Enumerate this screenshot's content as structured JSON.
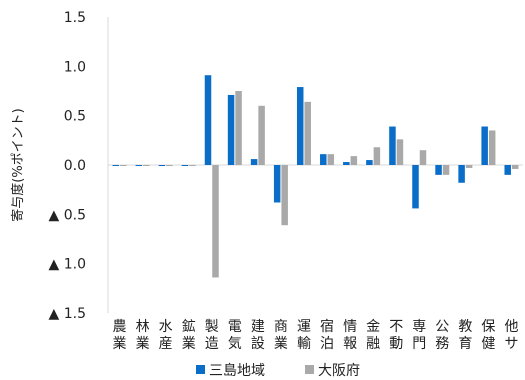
{
  "chart_data": {
    "type": "bar",
    "ylabel": "寄与度(%ポイント)",
    "yticks": [
      "1.5",
      "1.0",
      "0.5",
      "0.0",
      "▲ 0.5",
      "▲ 1.0",
      "▲ 1.5"
    ],
    "ylim": [
      -1.5,
      1.5
    ],
    "categories": [
      [
        "農",
        "業"
      ],
      [
        "林",
        "業"
      ],
      [
        "水",
        "産"
      ],
      [
        "鉱",
        "業"
      ],
      [
        "製",
        "造"
      ],
      [
        "電",
        "気"
      ],
      [
        "建",
        "設"
      ],
      [
        "商",
        "業"
      ],
      [
        "運",
        "輸"
      ],
      [
        "宿",
        "泊"
      ],
      [
        "情",
        "報"
      ],
      [
        "金",
        "融"
      ],
      [
        "不",
        "動"
      ],
      [
        "専",
        "門"
      ],
      [
        "公",
        "務"
      ],
      [
        "教",
        "育"
      ],
      [
        "保",
        "健"
      ],
      [
        "他",
        "サ"
      ]
    ],
    "series": [
      {
        "name": "三島地域",
        "color": "#0a6ec8",
        "values": [
          0.0,
          0.0,
          0.0,
          0.0,
          0.91,
          0.71,
          0.06,
          -0.38,
          0.79,
          0.11,
          0.03,
          0.05,
          0.39,
          -0.44,
          -0.1,
          -0.18,
          0.39,
          -0.1
        ]
      },
      {
        "name": "大阪府",
        "color": "#a9a9a9",
        "values": [
          0.0,
          0.0,
          0.0,
          0.0,
          -1.14,
          0.75,
          0.6,
          -0.61,
          0.64,
          0.11,
          0.09,
          0.18,
          0.26,
          0.15,
          -0.1,
          -0.03,
          0.35,
          -0.04
        ]
      }
    ],
    "legend_position": "bottom",
    "grid": false
  }
}
